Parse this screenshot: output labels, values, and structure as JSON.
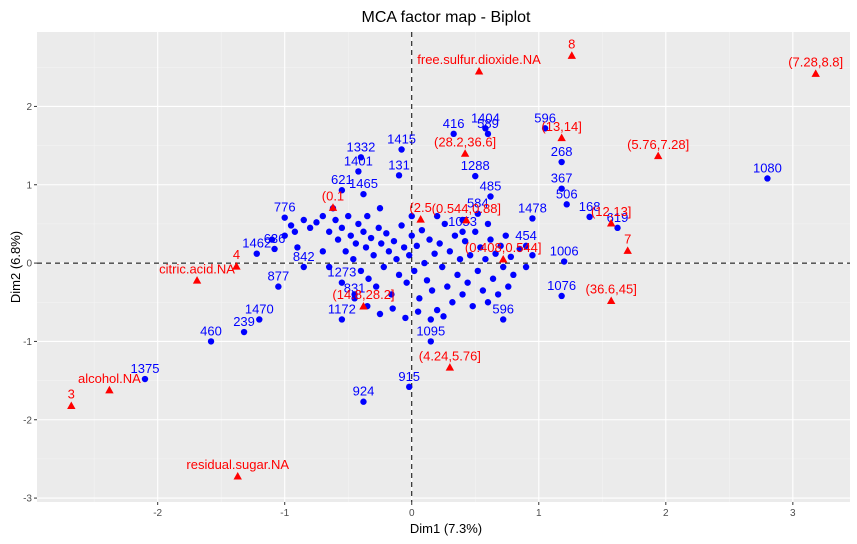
{
  "chart_data": {
    "type": "scatter",
    "title": "MCA factor map - Biplot",
    "xlabel": "Dim1 (7.3%)",
    "ylabel": "Dim2 (6.8%)",
    "xlim": [
      -2.95,
      3.45
    ],
    "ylim": [
      -3.05,
      2.95
    ],
    "x_ticks": [
      -2,
      -1,
      0,
      1,
      2,
      3
    ],
    "y_ticks": [
      -3,
      -2,
      -1,
      0,
      1,
      2
    ],
    "grid": true,
    "reference_lines": [
      0,
      0
    ],
    "colors": {
      "panel": "#ebebeb",
      "grid_major": "#ffffff",
      "individuals": "#0000ff",
      "categories": "#ff0000"
    },
    "individuals": [
      {
        "label": "1080",
        "x": 2.8,
        "y": 1.08
      },
      {
        "label": "596",
        "x": 1.05,
        "y": 1.72
      },
      {
        "label": "1404",
        "x": 0.58,
        "y": 1.72
      },
      {
        "label": "589",
        "x": 0.6,
        "y": 1.65
      },
      {
        "label": "416",
        "x": 0.33,
        "y": 1.65
      },
      {
        "label": "1415",
        "x": -0.08,
        "y": 1.45
      },
      {
        "label": "1332",
        "x": -0.4,
        "y": 1.35
      },
      {
        "label": "268",
        "x": 1.18,
        "y": 1.29
      },
      {
        "label": "131",
        "x": -0.1,
        "y": 1.12
      },
      {
        "label": "1401",
        "x": -0.42,
        "y": 1.17
      },
      {
        "label": "1288",
        "x": 0.5,
        "y": 1.11
      },
      {
        "label": "367",
        "x": 1.18,
        "y": 0.95
      },
      {
        "label": "1465",
        "x": -0.38,
        "y": 0.88
      },
      {
        "label": "621",
        "x": -0.55,
        "y": 0.93
      },
      {
        "label": "485",
        "x": 0.62,
        "y": 0.85
      },
      {
        "label": "506",
        "x": 1.22,
        "y": 0.75
      },
      {
        "label": "776",
        "x": -1.0,
        "y": 0.58
      },
      {
        "label": "1478",
        "x": 0.95,
        "y": 0.57
      },
      {
        "label": "168",
        "x": 1.4,
        "y": 0.59
      },
      {
        "label": "619",
        "x": 1.62,
        "y": 0.45
      },
      {
        "label": "584",
        "x": 0.52,
        "y": 0.63
      },
      {
        "label": "1053",
        "x": 0.4,
        "y": 0.4
      },
      {
        "label": "454",
        "x": 0.9,
        "y": 0.22
      },
      {
        "label": "1462",
        "x": -1.22,
        "y": 0.12
      },
      {
        "label": "636",
        "x": -1.08,
        "y": 0.18
      },
      {
        "label": "842",
        "x": -0.85,
        "y": -0.05
      },
      {
        "label": "1006",
        "x": 1.2,
        "y": 0.02
      },
      {
        "label": "877",
        "x": -1.05,
        "y": -0.3
      },
      {
        "label": "1273",
        "x": -0.55,
        "y": -0.25
      },
      {
        "label": "831",
        "x": -0.45,
        "y": -0.45
      },
      {
        "label": "1172",
        "x": -0.55,
        "y": -0.72
      },
      {
        "label": "1470",
        "x": -1.2,
        "y": -0.72
      },
      {
        "label": "1076",
        "x": 1.18,
        "y": -0.42
      },
      {
        "label": "239",
        "x": -1.32,
        "y": -0.88
      },
      {
        "label": "460",
        "x": -1.58,
        "y": -1.0
      },
      {
        "label": "1095",
        "x": 0.15,
        "y": -1.0
      },
      {
        "label": "596",
        "x": 0.72,
        "y": -0.72
      },
      {
        "label": "915",
        "x": -0.02,
        "y": -1.58
      },
      {
        "label": "924",
        "x": -0.38,
        "y": -1.77
      },
      {
        "label": "1375",
        "x": -2.1,
        "y": -1.48
      }
    ],
    "cloud_points": [
      [
        -1.0,
        0.35
      ],
      [
        -0.95,
        0.48
      ],
      [
        -0.92,
        0.4
      ],
      [
        -0.85,
        0.55
      ],
      [
        -0.8,
        0.45
      ],
      [
        -0.75,
        0.52
      ],
      [
        -0.7,
        0.6
      ],
      [
        -0.65,
        0.4
      ],
      [
        -0.62,
        0.7
      ],
      [
        -0.6,
        0.55
      ],
      [
        -0.58,
        0.3
      ],
      [
        -0.55,
        0.45
      ],
      [
        -0.52,
        0.15
      ],
      [
        -0.5,
        0.6
      ],
      [
        -0.48,
        0.35
      ],
      [
        -0.46,
        0.05
      ],
      [
        -0.44,
        0.25
      ],
      [
        -0.42,
        0.5
      ],
      [
        -0.4,
        -0.1
      ],
      [
        -0.38,
        0.4
      ],
      [
        -0.36,
        0.2
      ],
      [
        -0.34,
        -0.2
      ],
      [
        -0.32,
        0.32
      ],
      [
        -0.3,
        0.1
      ],
      [
        -0.28,
        -0.3
      ],
      [
        -0.26,
        0.45
      ],
      [
        -0.24,
        0.25
      ],
      [
        -0.22,
        -0.05
      ],
      [
        -0.2,
        0.38
      ],
      [
        -0.18,
        0.15
      ],
      [
        -0.16,
        -0.4
      ],
      [
        -0.14,
        0.28
      ],
      [
        -0.12,
        0.05
      ],
      [
        -0.1,
        -0.15
      ],
      [
        -0.08,
        0.48
      ],
      [
        -0.06,
        0.2
      ],
      [
        -0.04,
        -0.25
      ],
      [
        -0.02,
        0.1
      ],
      [
        0.0,
        0.35
      ],
      [
        0.02,
        -0.1
      ],
      [
        0.04,
        0.22
      ],
      [
        0.06,
        -0.45
      ],
      [
        0.08,
        0.42
      ],
      [
        0.1,
        0.0
      ],
      [
        0.12,
        -0.22
      ],
      [
        0.14,
        0.3
      ],
      [
        0.16,
        -0.35
      ],
      [
        0.18,
        0.12
      ],
      [
        0.2,
        -0.6
      ],
      [
        0.22,
        0.25
      ],
      [
        0.24,
        -0.05
      ],
      [
        0.26,
        0.5
      ],
      [
        0.28,
        -0.3
      ],
      [
        0.3,
        0.15
      ],
      [
        0.32,
        -0.5
      ],
      [
        0.34,
        0.35
      ],
      [
        0.36,
        -0.15
      ],
      [
        0.38,
        0.05
      ],
      [
        0.4,
        -0.4
      ],
      [
        0.42,
        0.28
      ],
      [
        0.44,
        -0.25
      ],
      [
        0.46,
        0.1
      ],
      [
        0.48,
        -0.55
      ],
      [
        0.5,
        0.4
      ],
      [
        0.52,
        -0.1
      ],
      [
        0.54,
        0.2
      ],
      [
        0.56,
        -0.35
      ],
      [
        0.58,
        0.05
      ],
      [
        0.6,
        -0.5
      ],
      [
        0.62,
        0.3
      ],
      [
        0.64,
        -0.2
      ],
      [
        0.66,
        0.12
      ],
      [
        0.68,
        -0.4
      ],
      [
        0.7,
        0.22
      ],
      [
        0.72,
        -0.05
      ],
      [
        0.74,
        0.35
      ],
      [
        0.76,
        -0.3
      ],
      [
        0.78,
        0.08
      ],
      [
        0.8,
        -0.15
      ],
      [
        0.85,
        0.18
      ],
      [
        0.9,
        -0.05
      ],
      [
        0.95,
        0.1
      ],
      [
        -0.45,
        -0.4
      ],
      [
        -0.35,
        -0.55
      ],
      [
        -0.25,
        -0.65
      ],
      [
        -0.15,
        -0.58
      ],
      [
        -0.05,
        -0.7
      ],
      [
        0.05,
        -0.62
      ],
      [
        0.15,
        -0.72
      ],
      [
        0.25,
        -0.68
      ],
      [
        -1.1,
        0.3
      ],
      [
        -0.9,
        0.2
      ],
      [
        -0.7,
        0.15
      ],
      [
        -0.65,
        -0.05
      ],
      [
        -0.35,
        0.6
      ],
      [
        -0.25,
        0.7
      ],
      [
        0.0,
        0.6
      ],
      [
        0.2,
        0.6
      ],
      [
        0.4,
        0.55
      ],
      [
        0.6,
        0.5
      ]
    ],
    "categories": [
      {
        "label": "8",
        "x": 1.26,
        "y": 2.65
      },
      {
        "label": "(7.28,8.8]",
        "x": 3.18,
        "y": 2.42
      },
      {
        "label": "free.sulfur.dioxide.NA",
        "x": 0.53,
        "y": 2.45
      },
      {
        "label": "(13,14]",
        "x": 1.18,
        "y": 1.6
      },
      {
        "label": "(5.76,7.28]",
        "x": 1.94,
        "y": 1.37
      },
      {
        "label": "(28.2,36.6]",
        "x": 0.42,
        "y": 1.4
      },
      {
        "label": "(12,13]",
        "x": 1.57,
        "y": 0.51
      },
      {
        "label": "7",
        "x": 1.7,
        "y": 0.16
      },
      {
        "label": "(0.1",
        "x": -0.62,
        "y": 0.71
      },
      {
        "label": "(2.5",
        "x": 0.07,
        "y": 0.56
      },
      {
        "label": "(0.544,0.88]",
        "x": 0.43,
        "y": 0.55
      },
      {
        "label": "4",
        "x": -1.38,
        "y": -0.04
      },
      {
        "label": "citric.acid.NA",
        "x": -1.69,
        "y": -0.22
      },
      {
        "label": "(36.6,45]",
        "x": 1.57,
        "y": -0.48
      },
      {
        "label": "(14.8,28.2]",
        "x": -0.38,
        "y": -0.55
      },
      {
        "label": "(0.408,0.544]",
        "x": 0.72,
        "y": 0.05
      },
      {
        "label": "(4.24,5.76]",
        "x": 0.3,
        "y": -1.33
      },
      {
        "label": "alcohol.NA",
        "x": -2.38,
        "y": -1.62
      },
      {
        "label": "3",
        "x": -2.68,
        "y": -1.82
      },
      {
        "label": "residual.sugar.NA",
        "x": -1.37,
        "y": -2.72
      }
    ]
  }
}
